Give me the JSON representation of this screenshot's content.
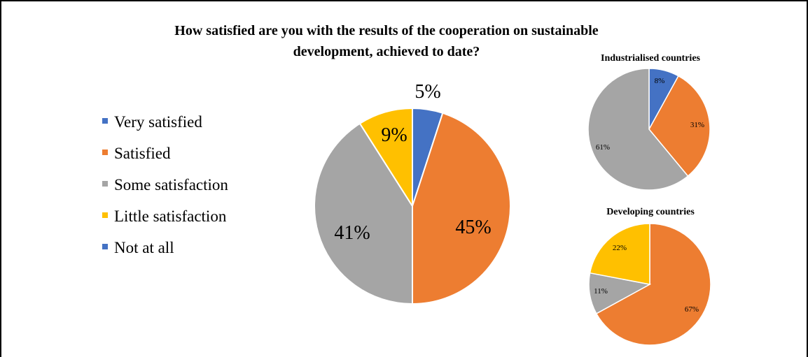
{
  "chart_data": [
    {
      "type": "pie",
      "title_lines": [
        "How satisfied are you with the results of the cooperation on sustainable",
        "development, achieved to date?"
      ],
      "legend": {
        "placement": "left",
        "entries": [
          {
            "label": "Very satisfied",
            "color": "#4472C4"
          },
          {
            "label": "Satisfied",
            "color": "#ED7D31"
          },
          {
            "label": "Some satisfaction",
            "color": "#A5A5A5"
          },
          {
            "label": "Little satisfaction",
            "color": "#FFC000"
          },
          {
            "label": "Not at all",
            "color": "#4472C4"
          }
        ]
      },
      "slices": [
        {
          "category": "Very satisfied",
          "value": 5,
          "label": "5%",
          "color": "#4472C4"
        },
        {
          "category": "Satisfied",
          "value": 45,
          "label": "45%",
          "color": "#ED7D31"
        },
        {
          "category": "Some satisfaction",
          "value": 41,
          "label": "41%",
          "color": "#A5A5A5"
        },
        {
          "category": "Little satisfaction",
          "value": 9,
          "label": "9%",
          "color": "#FFC000"
        }
      ]
    },
    {
      "type": "pie",
      "title": "Industrialised countries",
      "slices": [
        {
          "category": "Very satisfied",
          "value": 8,
          "label": "8%",
          "color": "#4472C4"
        },
        {
          "category": "Satisfied",
          "value": 31,
          "label": "31%",
          "color": "#ED7D31"
        },
        {
          "category": "Some satisfaction",
          "value": 61,
          "label": "61%",
          "color": "#A5A5A5"
        }
      ]
    },
    {
      "type": "pie",
      "title": "Developing countries",
      "slices": [
        {
          "category": "Satisfied",
          "value": 67,
          "label": "67%",
          "color": "#ED7D31"
        },
        {
          "category": "Some satisfaction",
          "value": 11,
          "label": "11%",
          "color": "#A5A5A5"
        },
        {
          "category": "Little satisfaction",
          "value": 22,
          "label": "22%",
          "color": "#FFC000"
        }
      ]
    }
  ]
}
